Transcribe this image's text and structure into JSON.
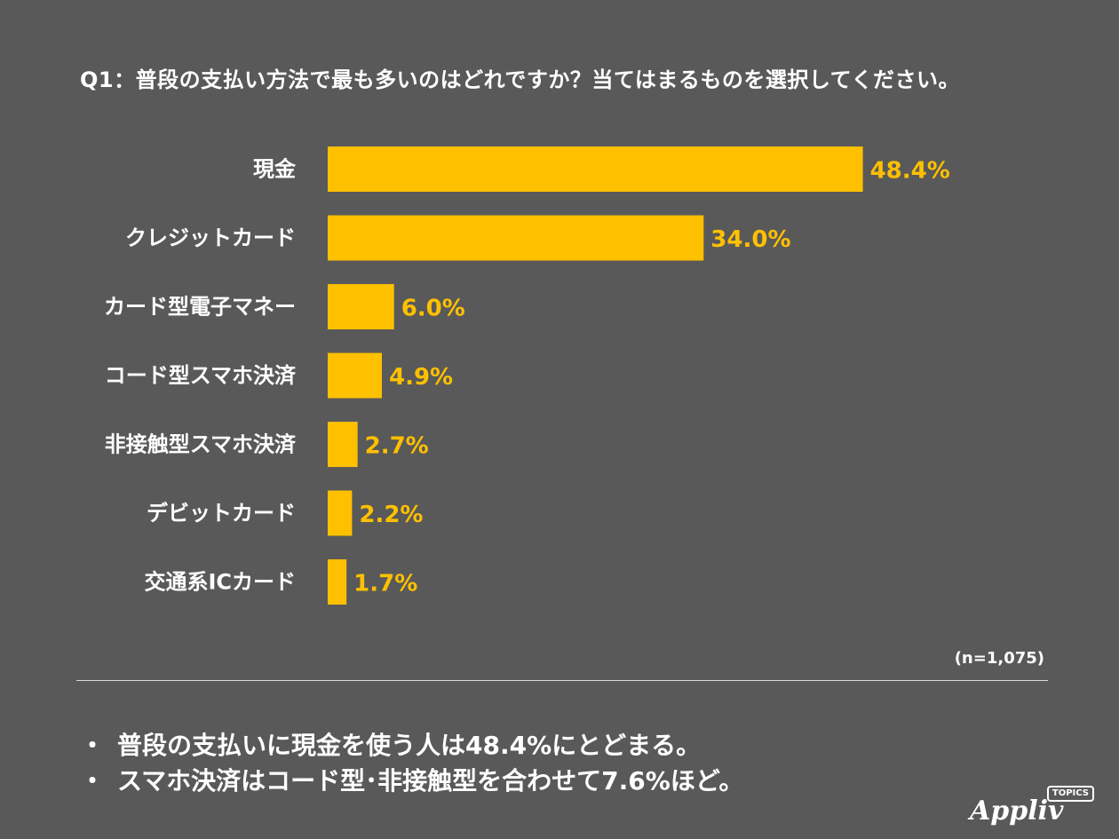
{
  "question": "Q1：普段の支払い方法で最も多いのはどれですか？当てはまるものを選択してください。",
  "chart_data": {
    "type": "bar",
    "orientation": "horizontal",
    "title": "Q1：普段の支払い方法で最も多いのはどれですか？当てはまるものを選択してください。",
    "categories": [
      "現金",
      "クレジットカード",
      "カード型電子マネー",
      "コード型スマホ決済",
      "非接触型スマホ決済",
      "デビットカード",
      "交通系ICカード"
    ],
    "values": [
      48.4,
      34.0,
      6.0,
      4.9,
      2.7,
      2.2,
      1.7
    ],
    "value_labels": [
      "48.4%",
      "34.0%",
      "6.0%",
      "4.9%",
      "2.7%",
      "2.2%",
      "1.7%"
    ],
    "unit": "%",
    "xlim": [
      0,
      50
    ],
    "grid": false,
    "legend": "none",
    "bar_color": "#FFC000",
    "value_label_color": "#FFC000"
  },
  "sample_size": "(n=1,075)",
  "findings": [
    "普段の支払いに現金を使う人は48.4%にとどまる。",
    "スマホ決済はコード型･非接触型を合わせて7.6%ほど。"
  ],
  "bullet_symbol": "・",
  "logo": {
    "name": "Appliv",
    "badge": "TOPICS"
  }
}
